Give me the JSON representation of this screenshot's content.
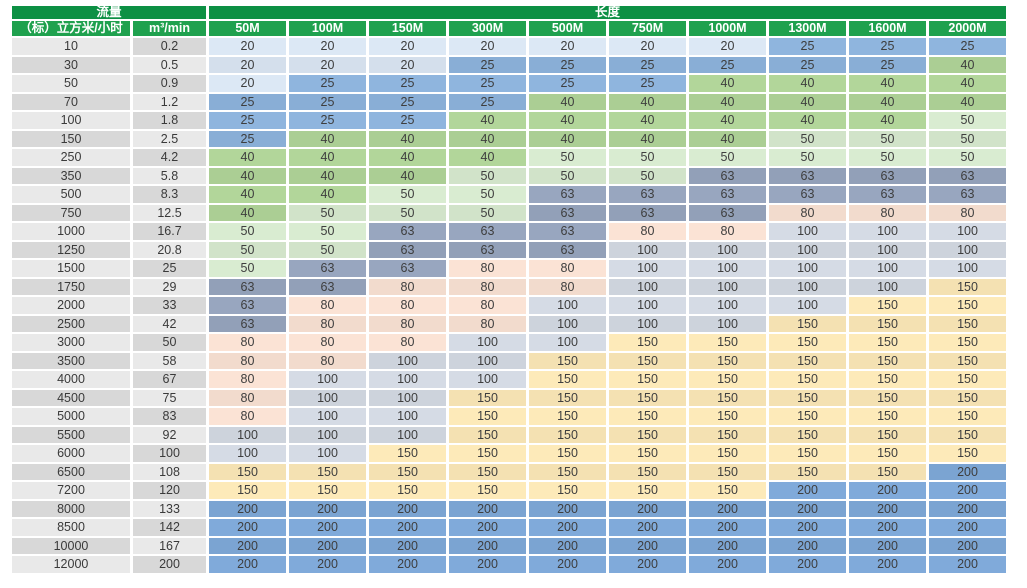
{
  "chart_data": {
    "type": "table",
    "title": "",
    "groups": [
      {
        "label": "流量",
        "span": 2
      },
      {
        "label": "长度",
        "span": 10
      }
    ],
    "flow_std_label": "（标）立方米/小时",
    "flow_min_label": "m³/min",
    "length_columns": [
      "50M",
      "100M",
      "150M",
      "300M",
      "500M",
      "750M",
      "1000M",
      "1300M",
      "1600M",
      "2000M"
    ],
    "rows": [
      {
        "flow_std": "10",
        "flow_min": "0.2",
        "values": [
          20,
          20,
          20,
          20,
          20,
          20,
          20,
          25,
          25,
          25
        ]
      },
      {
        "flow_std": "30",
        "flow_min": "0.5",
        "values": [
          20,
          20,
          20,
          25,
          25,
          25,
          25,
          25,
          25,
          40
        ]
      },
      {
        "flow_std": "50",
        "flow_min": "0.9",
        "values": [
          20,
          25,
          25,
          25,
          25,
          25,
          40,
          40,
          40,
          40
        ]
      },
      {
        "flow_std": "70",
        "flow_min": "1.2",
        "values": [
          25,
          25,
          25,
          25,
          40,
          40,
          40,
          40,
          40,
          40
        ]
      },
      {
        "flow_std": "100",
        "flow_min": "1.8",
        "values": [
          25,
          25,
          25,
          40,
          40,
          40,
          40,
          40,
          40,
          50
        ]
      },
      {
        "flow_std": "150",
        "flow_min": "2.5",
        "values": [
          25,
          40,
          40,
          40,
          40,
          40,
          40,
          50,
          50,
          50
        ]
      },
      {
        "flow_std": "250",
        "flow_min": "4.2",
        "values": [
          40,
          40,
          40,
          40,
          50,
          50,
          50,
          50,
          50,
          50
        ]
      },
      {
        "flow_std": "350",
        "flow_min": "5.8",
        "values": [
          40,
          40,
          40,
          50,
          50,
          50,
          63,
          63,
          63,
          63
        ]
      },
      {
        "flow_std": "500",
        "flow_min": "8.3",
        "values": [
          40,
          40,
          50,
          50,
          63,
          63,
          63,
          63,
          63,
          63
        ]
      },
      {
        "flow_std": "750",
        "flow_min": "12.5",
        "values": [
          40,
          50,
          50,
          50,
          63,
          63,
          63,
          80,
          80,
          80
        ]
      },
      {
        "flow_std": "1000",
        "flow_min": "16.7",
        "values": [
          50,
          50,
          63,
          63,
          63,
          80,
          80,
          100,
          100,
          100
        ]
      },
      {
        "flow_std": "1250",
        "flow_min": "20.8",
        "values": [
          50,
          50,
          63,
          63,
          63,
          100,
          100,
          100,
          100,
          100
        ]
      },
      {
        "flow_std": "1500",
        "flow_min": "25",
        "values": [
          50,
          63,
          63,
          80,
          80,
          100,
          100,
          100,
          100,
          100
        ]
      },
      {
        "flow_std": "1750",
        "flow_min": "29",
        "values": [
          63,
          63,
          80,
          80,
          80,
          100,
          100,
          100,
          100,
          150
        ]
      },
      {
        "flow_std": "2000",
        "flow_min": "33",
        "values": [
          63,
          80,
          80,
          80,
          100,
          100,
          100,
          100,
          150,
          150
        ]
      },
      {
        "flow_std": "2500",
        "flow_min": "42",
        "values": [
          63,
          80,
          80,
          80,
          100,
          100,
          100,
          150,
          150,
          150
        ]
      },
      {
        "flow_std": "3000",
        "flow_min": "50",
        "values": [
          80,
          80,
          80,
          100,
          100,
          150,
          150,
          150,
          150,
          150
        ]
      },
      {
        "flow_std": "3500",
        "flow_min": "58",
        "values": [
          80,
          80,
          100,
          100,
          150,
          150,
          150,
          150,
          150,
          150
        ]
      },
      {
        "flow_std": "4000",
        "flow_min": "67",
        "values": [
          80,
          100,
          100,
          100,
          150,
          150,
          150,
          150,
          150,
          150
        ]
      },
      {
        "flow_std": "4500",
        "flow_min": "75",
        "values": [
          80,
          100,
          100,
          150,
          150,
          150,
          150,
          150,
          150,
          150
        ]
      },
      {
        "flow_std": "5000",
        "flow_min": "83",
        "values": [
          80,
          100,
          100,
          150,
          150,
          150,
          150,
          150,
          150,
          150
        ]
      },
      {
        "flow_std": "5500",
        "flow_min": "92",
        "values": [
          100,
          100,
          100,
          150,
          150,
          150,
          150,
          150,
          150,
          150
        ]
      },
      {
        "flow_std": "6000",
        "flow_min": "100",
        "values": [
          100,
          100,
          150,
          150,
          150,
          150,
          150,
          150,
          150,
          150
        ]
      },
      {
        "flow_std": "6500",
        "flow_min": "108",
        "values": [
          150,
          150,
          150,
          150,
          150,
          150,
          150,
          150,
          150,
          200
        ]
      },
      {
        "flow_std": "7200",
        "flow_min": "120",
        "values": [
          150,
          150,
          150,
          150,
          150,
          150,
          150,
          200,
          200,
          200
        ]
      },
      {
        "flow_std": "8000",
        "flow_min": "133",
        "values": [
          200,
          200,
          200,
          200,
          200,
          200,
          200,
          200,
          200,
          200
        ]
      },
      {
        "flow_std": "8500",
        "flow_min": "142",
        "values": [
          200,
          200,
          200,
          200,
          200,
          200,
          200,
          200,
          200,
          200
        ]
      },
      {
        "flow_std": "10000",
        "flow_min": "167",
        "values": [
          200,
          200,
          200,
          200,
          200,
          200,
          200,
          200,
          200,
          200
        ]
      },
      {
        "flow_std": "12000",
        "flow_min": "200",
        "values": [
          200,
          200,
          200,
          200,
          200,
          200,
          200,
          200,
          200,
          200
        ]
      }
    ],
    "value_colors": {
      "20": "#dce8f5",
      "25": "#8fb5de",
      "40": "#b2d69a",
      "50": "#d9ecd1",
      "63": "#98a6bf",
      "80": "#fbe3d5",
      "100": "#d5dbe5",
      "150": "#fdeab9",
      "200": "#80aada"
    },
    "layout_colors": {
      "group_header_green": "#0d9044",
      "column_header_green": "#1fa14e",
      "header_text": "#ffffff",
      "flow_cell_light": "#e9e9e9",
      "flow_cell_dark": "#d8d8d8",
      "cell_text": "#3e3e3e",
      "gap_white": "#ffffff"
    }
  }
}
